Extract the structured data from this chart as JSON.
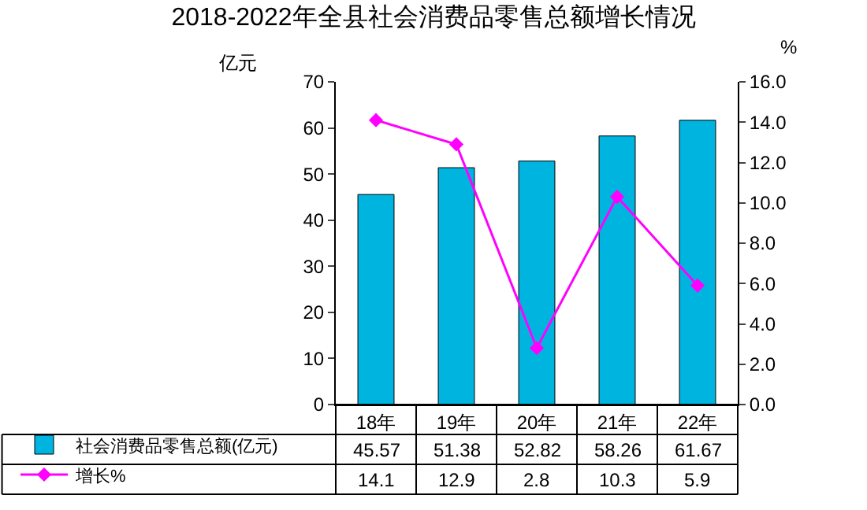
{
  "chart_data": {
    "type": "bar",
    "title": "2018-2022年全县社会消费品零售总额增长情况",
    "ylabel": "亿元",
    "y2label": "%",
    "categories": [
      "18年",
      "19年",
      "20年",
      "21年",
      "22年"
    ],
    "series": [
      {
        "name": "社会消费品零售总额(亿元)",
        "color": "#00b4e0",
        "values": [
          45.57,
          51.38,
          52.82,
          58.26,
          61.67
        ]
      },
      {
        "name": "增长%",
        "type": "line",
        "axis": "y2",
        "color": "#ff00ff",
        "marker": "diamond",
        "values": [
          14.1,
          12.9,
          2.8,
          10.3,
          5.9
        ]
      }
    ],
    "ylim": [
      0,
      70
    ],
    "yticks": [
      0,
      10,
      20,
      30,
      40,
      50,
      60,
      70
    ],
    "y2lim": [
      0,
      16
    ],
    "y2ticks": [
      {
        "value": 0,
        "label": "0.0"
      },
      {
        "value": 2,
        "label": "2.0"
      },
      {
        "value": 4,
        "label": "4.0"
      },
      {
        "value": 6,
        "label": "6.0"
      },
      {
        "value": 8,
        "label": "8.0"
      },
      {
        "value": 10,
        "label": "10.0"
      },
      {
        "value": 12,
        "label": "12.0"
      },
      {
        "value": 14,
        "label": "14.0"
      },
      {
        "value": 16,
        "label": "16.0"
      }
    ],
    "data_labels": true,
    "legend": "bottom"
  }
}
